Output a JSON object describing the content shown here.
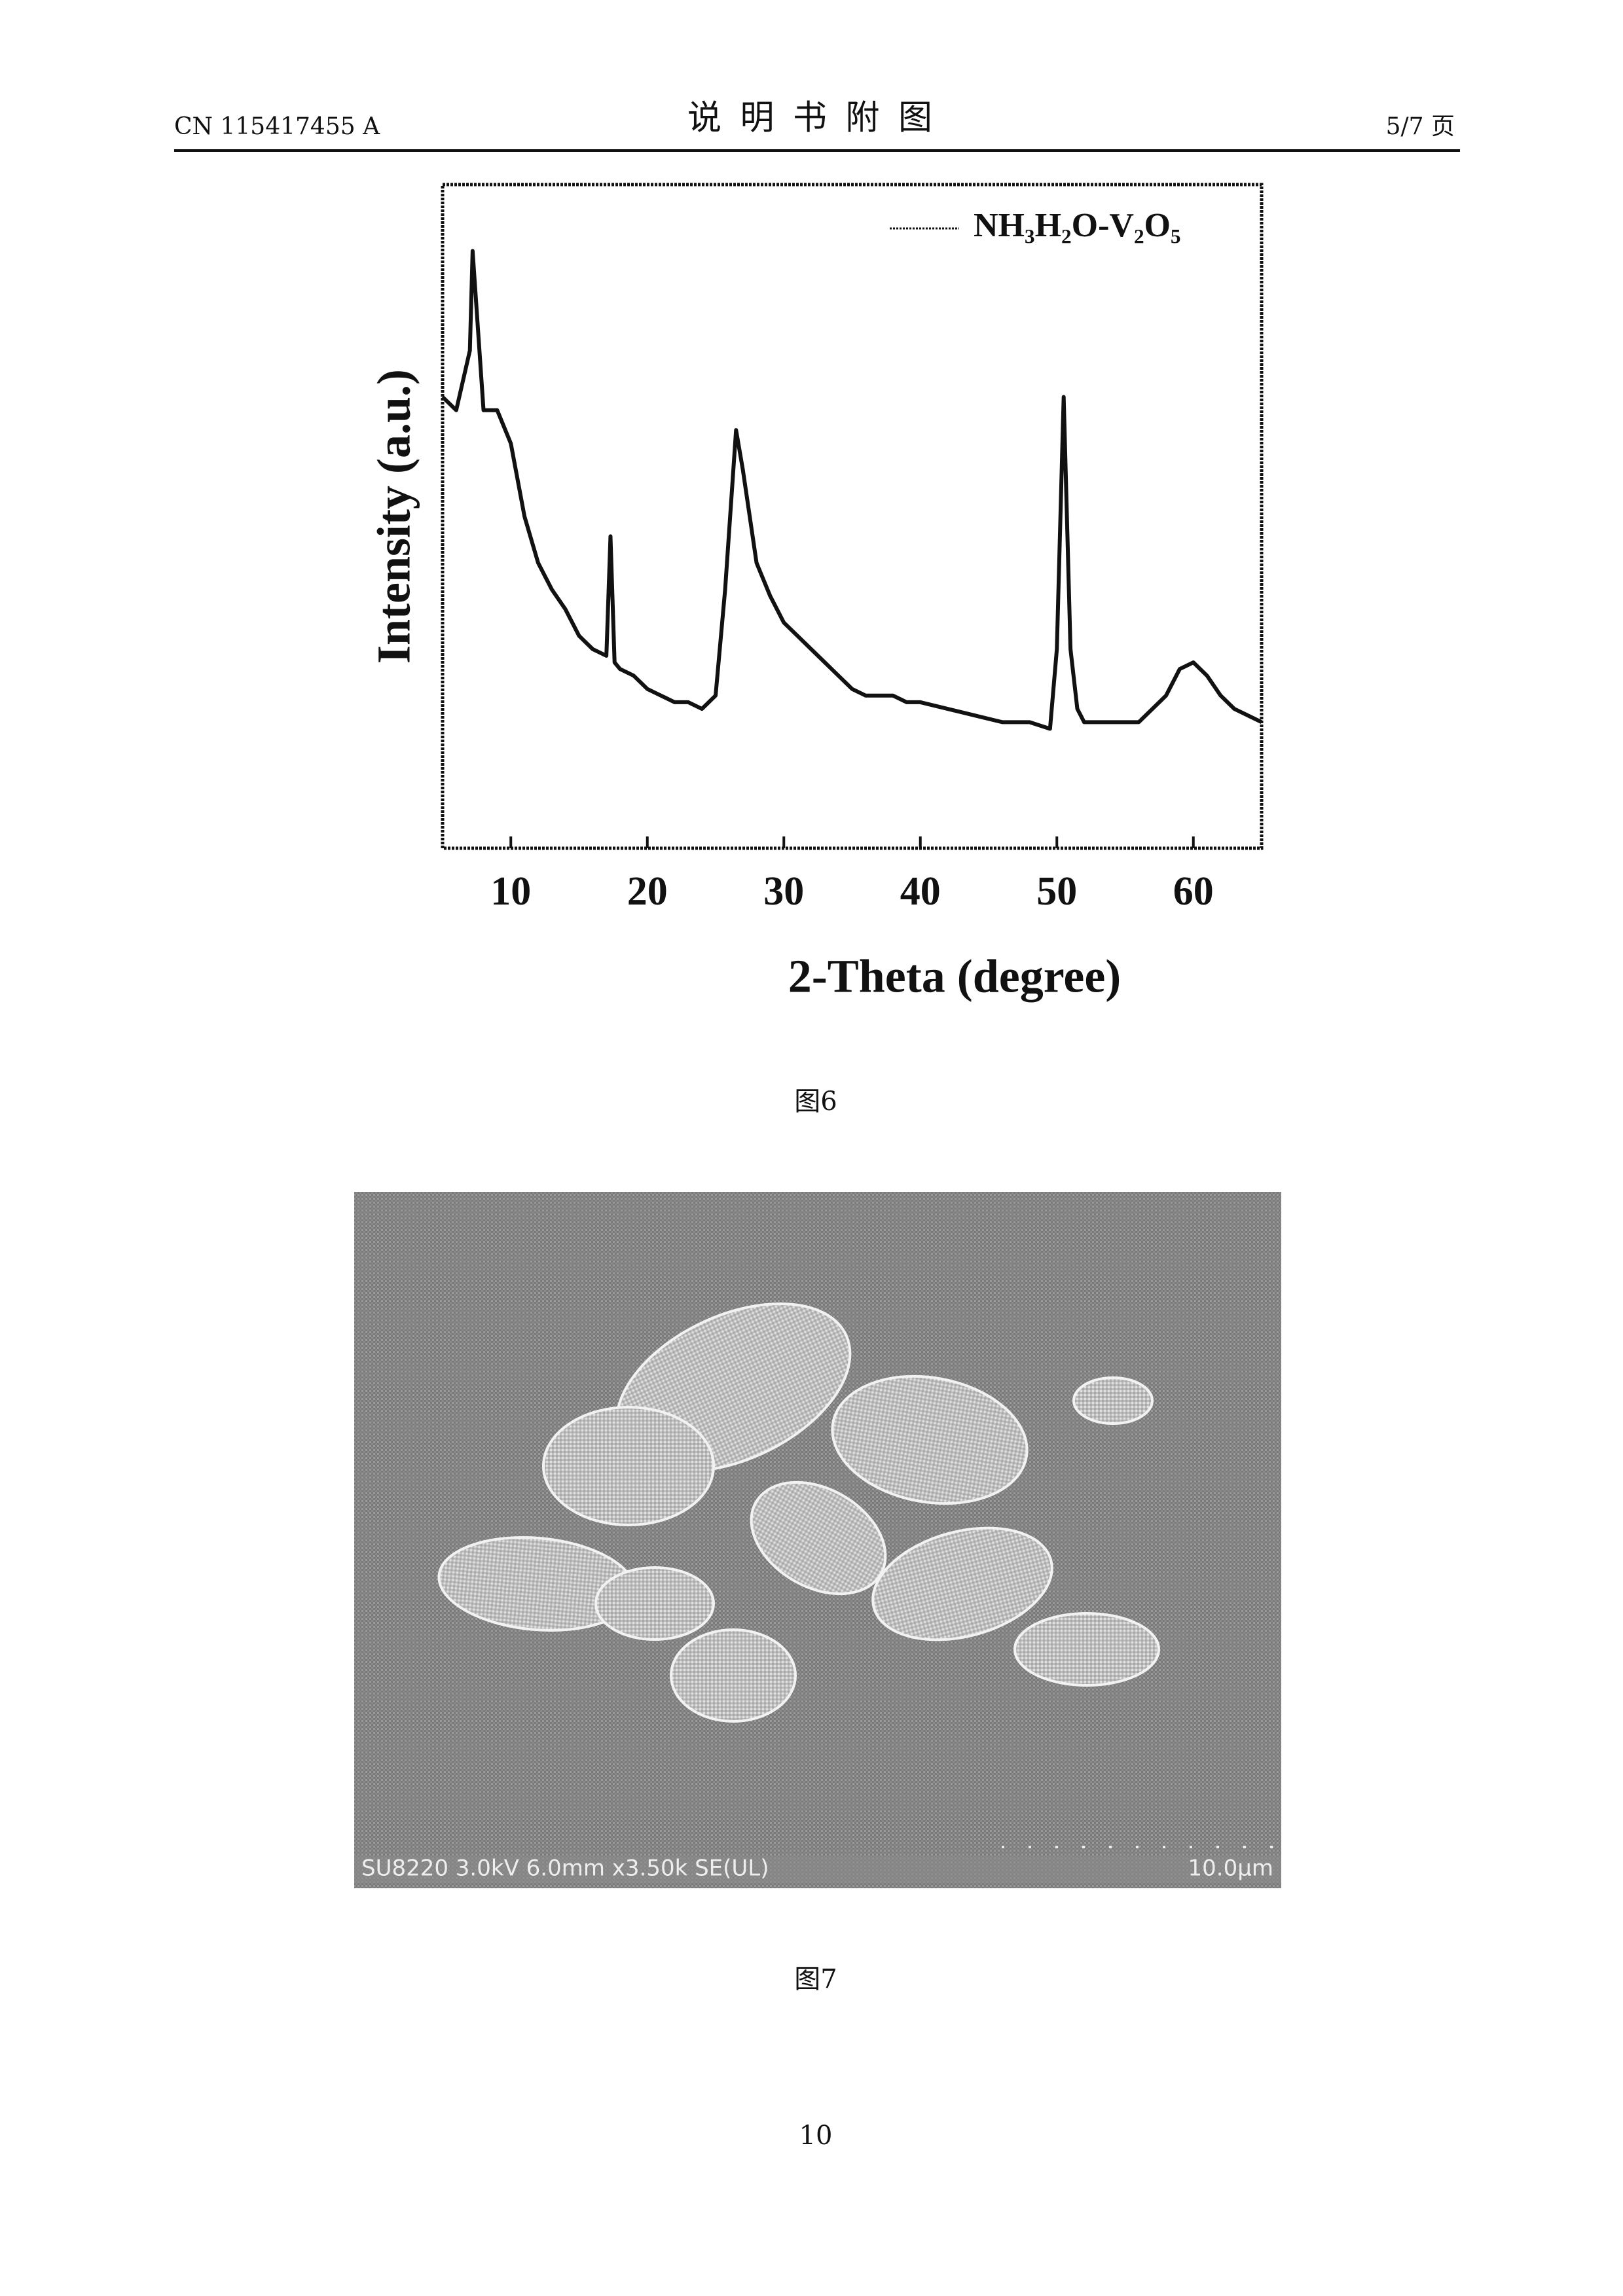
{
  "header": {
    "left": "CN 115417455 A",
    "title": "说 明 书 附 图",
    "right": "5/7 页"
  },
  "chart_data": {
    "type": "line",
    "x_label": "2-Theta (degree)",
    "y_label": "Intensity (a.u.)",
    "x": [
      5,
      6,
      7,
      7.2,
      8,
      9,
      10,
      11,
      12,
      13,
      14,
      15,
      16,
      17,
      17.3,
      17.6,
      18,
      19,
      20,
      21,
      22,
      23,
      24,
      25,
      25.7,
      26.5,
      27,
      28,
      29,
      30,
      31,
      32,
      33,
      34,
      35,
      36,
      37,
      38,
      39,
      40,
      42,
      44,
      46,
      48,
      49.5,
      50,
      50.5,
      51,
      51.5,
      52,
      54,
      56,
      58,
      59,
      60,
      61,
      62,
      63,
      64,
      65
    ],
    "series": [
      {
        "name": "NH₃H₂O-V₂O₅",
        "color": "#111111",
        "values": [
          68,
          66,
          75,
          90,
          66,
          66,
          61,
          50,
          43,
          39,
          36,
          32,
          30,
          29,
          47,
          28,
          27,
          26,
          24,
          23,
          22,
          22,
          21,
          23,
          39,
          63,
          57,
          43,
          38,
          34,
          32,
          30,
          28,
          26,
          24,
          23,
          23,
          23,
          22,
          22,
          21,
          20,
          19,
          19,
          18,
          30,
          68,
          30,
          21,
          19,
          19,
          19,
          23,
          27,
          28,
          26,
          23,
          21,
          20,
          19
        ]
      }
    ],
    "xlim": [
      5,
      65
    ],
    "ylim": [
      0,
      100
    ],
    "xticks": [
      10,
      20,
      30,
      40,
      50,
      60
    ],
    "legend": "upper right"
  },
  "figure_6_caption": "图6",
  "sem_image": {
    "info": "SU8220 3.0kV 6.0mm x3.50k SE(UL)",
    "scale_bar": "10.0μm"
  },
  "figure_7_caption": "图7",
  "page_number": "10"
}
